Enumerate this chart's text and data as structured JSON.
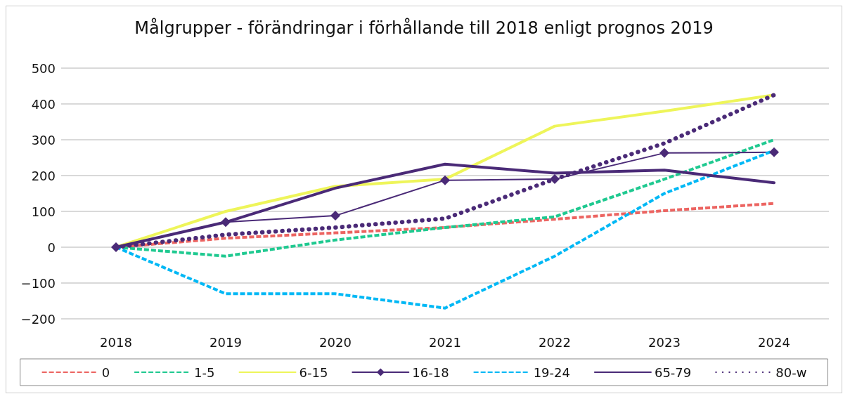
{
  "chart_data": {
    "type": "line",
    "title": "Målgrupper - förändringar i förhållande till 2018 enligt prognos 2019",
    "categories": [
      "2018",
      "2019",
      "2020",
      "2021",
      "2022",
      "2023",
      "2024"
    ],
    "series": [
      {
        "name": "0",
        "color": "#ec6461",
        "line_style": "dashed",
        "values": [
          0,
          25,
          40,
          55,
          78,
          102,
          122
        ]
      },
      {
        "name": "1-5",
        "color": "#1fc990",
        "line_style": "dashed",
        "values": [
          0,
          -25,
          20,
          55,
          85,
          190,
          300
        ]
      },
      {
        "name": "6-15",
        "color": "#eef55a",
        "line_style": "solid",
        "values": [
          0,
          100,
          170,
          190,
          338,
          380,
          425
        ]
      },
      {
        "name": "16-18",
        "color": "#4a2a77",
        "line_style": "solid",
        "marker": "diamond",
        "values": [
          0,
          70,
          88,
          187,
          190,
          263,
          265
        ]
      },
      {
        "name": "19-24",
        "color": "#00b8f5",
        "line_style": "dashed",
        "values": [
          0,
          -130,
          -130,
          -170,
          -25,
          150,
          270
        ]
      },
      {
        "name": "65-79",
        "color": "#4a2a77",
        "line_style": "solid",
        "values": [
          0,
          70,
          165,
          232,
          207,
          215,
          180
        ]
      },
      {
        "name": "80-w",
        "color": "#4a2a77",
        "line_style": "dotted",
        "values": [
          0,
          35,
          55,
          80,
          190,
          290,
          425
        ]
      }
    ],
    "ylim": [
      -200,
      500
    ],
    "yticks": [
      -200,
      -100,
      0,
      100,
      200,
      300,
      400,
      500
    ],
    "grid": "y",
    "legend": "bottom"
  }
}
